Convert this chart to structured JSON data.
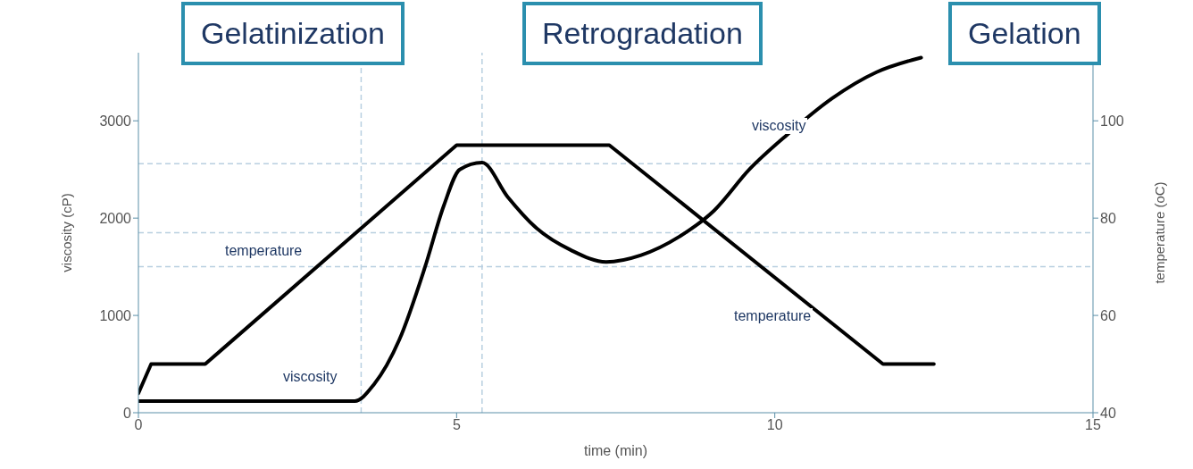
{
  "chart_data": {
    "type": "line",
    "xlabel": "time (min)",
    "ylabel": "viscosity (cP)",
    "y2label": "temperature (oC)",
    "xlim": [
      0,
      15
    ],
    "xticks": [
      0,
      5,
      10,
      15
    ],
    "ylim": [
      0,
      3700
    ],
    "yticks": [
      0,
      1000,
      2000,
      3000
    ],
    "y2lim": [
      40,
      114
    ],
    "y2ticks": [
      40,
      60,
      80,
      100
    ],
    "marker": "none",
    "line_style": "solid",
    "series": [
      {
        "color": "#000000",
        "x": [
          0,
          3.4,
          3.7,
          4.1,
          4.5,
          4.8,
          5.05,
          5.4,
          5.8,
          6.25,
          6.8,
          7.35,
          7.9,
          8.5,
          9.05,
          9.6,
          10.2,
          10.9,
          11.6,
          12.3
        ],
        "values": [
          120,
          120,
          290,
          750,
          1490,
          2130,
          2500,
          2570,
          2220,
          1900,
          1670,
          1550,
          1620,
          1810,
          2080,
          2500,
          2860,
          3230,
          3500,
          3650
        ]
      },
      {
        "color": "#000000",
        "axis": "y2",
        "x": [
          0,
          0.2,
          1.05,
          5,
          7.4,
          11.7,
          12.5
        ],
        "values": [
          44,
          50,
          50,
          95,
          95,
          50,
          50
        ]
      }
    ],
    "ref_lines": [
      {
        "axis": "y",
        "value": 1500,
        "color": "#b8cfe0",
        "line_style": "dashed"
      },
      {
        "axis": "y",
        "value": 1850,
        "color": "#b8cfe0",
        "line_style": "dashed"
      },
      {
        "axis": "y",
        "value": 2560,
        "color": "#b8cfe0",
        "line_style": "dashed"
      },
      {
        "axis": "x",
        "value": 3.5,
        "color": "#b8cfe0",
        "line_style": "dashed"
      },
      {
        "axis": "x",
        "value": 5.4,
        "color": "#b8cfe0",
        "line_style": "dashed"
      }
    ],
    "annotations": [
      "Gelatinization",
      "Retrogradation",
      "Gelation",
      "temperature",
      "viscosity",
      "viscosity",
      "temperature"
    ]
  }
}
